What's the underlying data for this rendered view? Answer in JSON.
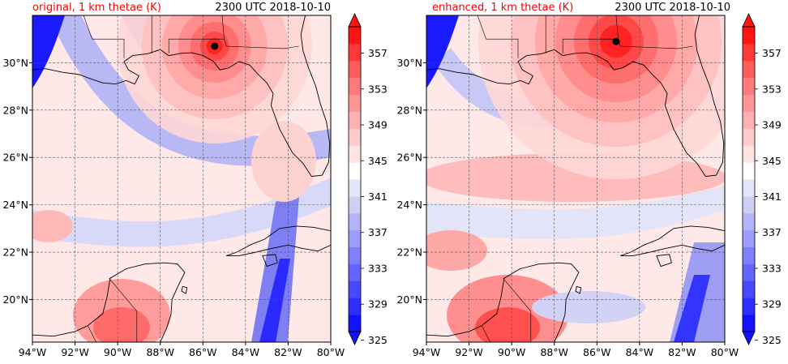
{
  "panels": [
    {
      "id": "original",
      "title_left": "original, 1 km thetae (K)",
      "title_right": "2300 UTC 2018-10-10",
      "storm_lon": -85.45,
      "storm_lat": 30.7
    },
    {
      "id": "enhanced",
      "title_left": "enhanced, 1 km thetae (K)",
      "title_right": "2300 UTC 2018-10-10",
      "storm_lon": -85.1,
      "storm_lat": 30.9
    }
  ],
  "map": {
    "lon_range": [
      -94,
      -80
    ],
    "lat_range": [
      18.2,
      32.0
    ],
    "x_ticks": [
      "94°W",
      "92°W",
      "90°W",
      "88°W",
      "86°W",
      "84°W",
      "82°W",
      "80°W"
    ],
    "x_tick_values": [
      -94,
      -92,
      -90,
      -88,
      -86,
      -84,
      -82,
      -80
    ],
    "y_ticks": [
      "20°N",
      "22°N",
      "24°N",
      "26°N",
      "28°N",
      "30°N"
    ],
    "y_tick_values": [
      20,
      22,
      24,
      26,
      28,
      30
    ],
    "gridlines": true
  },
  "colorbar": {
    "tick_labels": [
      "325",
      "329",
      "333",
      "337",
      "341",
      "345",
      "349",
      "353",
      "357"
    ],
    "levels": [
      325,
      327,
      329,
      331,
      333,
      335,
      337,
      339,
      341,
      343,
      345,
      347,
      349,
      351,
      353,
      355,
      357,
      359
    ],
    "colors": [
      "#1212ff",
      "#2e2eff",
      "#4848ff",
      "#6464ff",
      "#8080ff",
      "#9c9cff",
      "#b4b4fa",
      "#cfcff5",
      "#e4e4f8",
      "#ffffff",
      "#ffe2e2",
      "#ffcaca",
      "#ffb0b0",
      "#ff9696",
      "#ff7b7b",
      "#ff5c5c",
      "#ff3838",
      "#ff1414"
    ],
    "extend": "both"
  },
  "colors": {
    "title_left": "#ff0000",
    "coast": "#000000",
    "grid": "#555555"
  }
}
